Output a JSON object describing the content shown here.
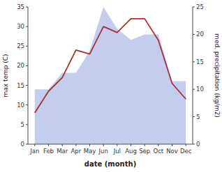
{
  "chart_data": {
    "type": "line",
    "categories": [
      "Jan",
      "Feb",
      "Mar",
      "Apr",
      "May",
      "Jun",
      "Jul",
      "Aug",
      "Sep",
      "Oct",
      "Nov",
      "Dec"
    ],
    "series": [
      {
        "type": "area",
        "axis": "y2",
        "color": "#b0bce8",
        "values": [
          10,
          10,
          13,
          13,
          17,
          25,
          21,
          19,
          20,
          20,
          11.5,
          11.5
        ]
      },
      {
        "type": "line",
        "color": "#a83030",
        "values": [
          8,
          13.5,
          17,
          24,
          23,
          30,
          28.5,
          32,
          32,
          26.5,
          15.5,
          11.5
        ]
      }
    ],
    "x_label": "date (month)",
    "y_label": "max temp (C)",
    "y2_label": "med. precipitation (kg/m2)",
    "ylim": [
      0,
      35
    ],
    "yticks": [
      0,
      5,
      10,
      15,
      20,
      25,
      30,
      35
    ],
    "y2lim": [
      0,
      25
    ],
    "y2ticks": [
      0,
      5,
      10,
      15,
      20,
      25
    ],
    "grid": false
  }
}
